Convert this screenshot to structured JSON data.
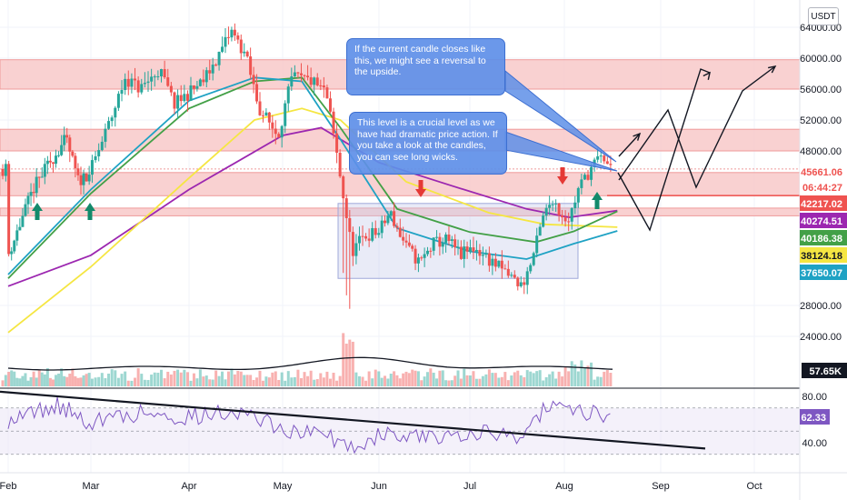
{
  "currency": "USDT",
  "notes": [
    {
      "text": "If the current candle closes like this, we might see a reversal to the upside."
    },
    {
      "text": "This level is a crucial level as we have had dramatic price action. If you take a look at the candles, you can see long wicks."
    }
  ],
  "chart_data": {
    "type": "candlestick",
    "price_ticks": [
      "64000.00",
      "60000.00",
      "56000.00",
      "52000.00",
      "48000.00",
      "28000.00",
      "24000.00"
    ],
    "price_tick_values": [
      64000,
      60000,
      56000,
      52000,
      48000,
      28000,
      24000
    ],
    "time_ticks": [
      "Feb",
      "Mar",
      "Apr",
      "May",
      "Jun",
      "Jul",
      "Aug",
      "Sep",
      "Oct"
    ],
    "price_labels": [
      {
        "text": "45661.06",
        "color": "#ef5350",
        "bg": "#ffffff",
        "fg": "#ef5350"
      },
      {
        "text": "06:44:27",
        "color": "#ef5350",
        "bg": "#ffffff",
        "fg": "#ef5350"
      },
      {
        "text": "42217.02",
        "color": "#ef5350",
        "bg": "#ef5350",
        "fg": "#ffffff"
      },
      {
        "text": "40274.51",
        "color": "#9c27b0",
        "bg": "#9c27b0",
        "fg": "#ffffff"
      },
      {
        "text": "40186.38",
        "color": "#43a047",
        "bg": "#43a047",
        "fg": "#ffffff"
      },
      {
        "text": "38124.18",
        "color": "#f5e642",
        "bg": "#f5e642",
        "fg": "#131722"
      },
      {
        "text": "37650.07",
        "color": "#1fa2c4",
        "bg": "#1fa2c4",
        "fg": "#ffffff"
      }
    ],
    "volume_label": "57.65K",
    "rsi_ticks": [
      "80.00",
      "40.00"
    ],
    "rsi_tick_values": [
      80,
      40
    ],
    "rsi_value": "62.33",
    "resistance_zones": [
      [
        56000,
        59800
      ],
      [
        48000,
        50800
      ],
      [
        42200,
        45200
      ],
      [
        39600,
        40600
      ]
    ],
    "consolidation_box": [
      31500,
      41200
    ],
    "current_price": 45661.06,
    "level_line": 42217.02,
    "colors": {
      "up": "#26a69a",
      "down": "#ef5350",
      "zone": "#f8c9c9",
      "ma_purple": "#9c27b0",
      "ma_green": "#43a047",
      "ma_yellow": "#f5e642",
      "ma_cyan": "#1fa2c4",
      "rsi": "#7e57c2"
    }
  }
}
